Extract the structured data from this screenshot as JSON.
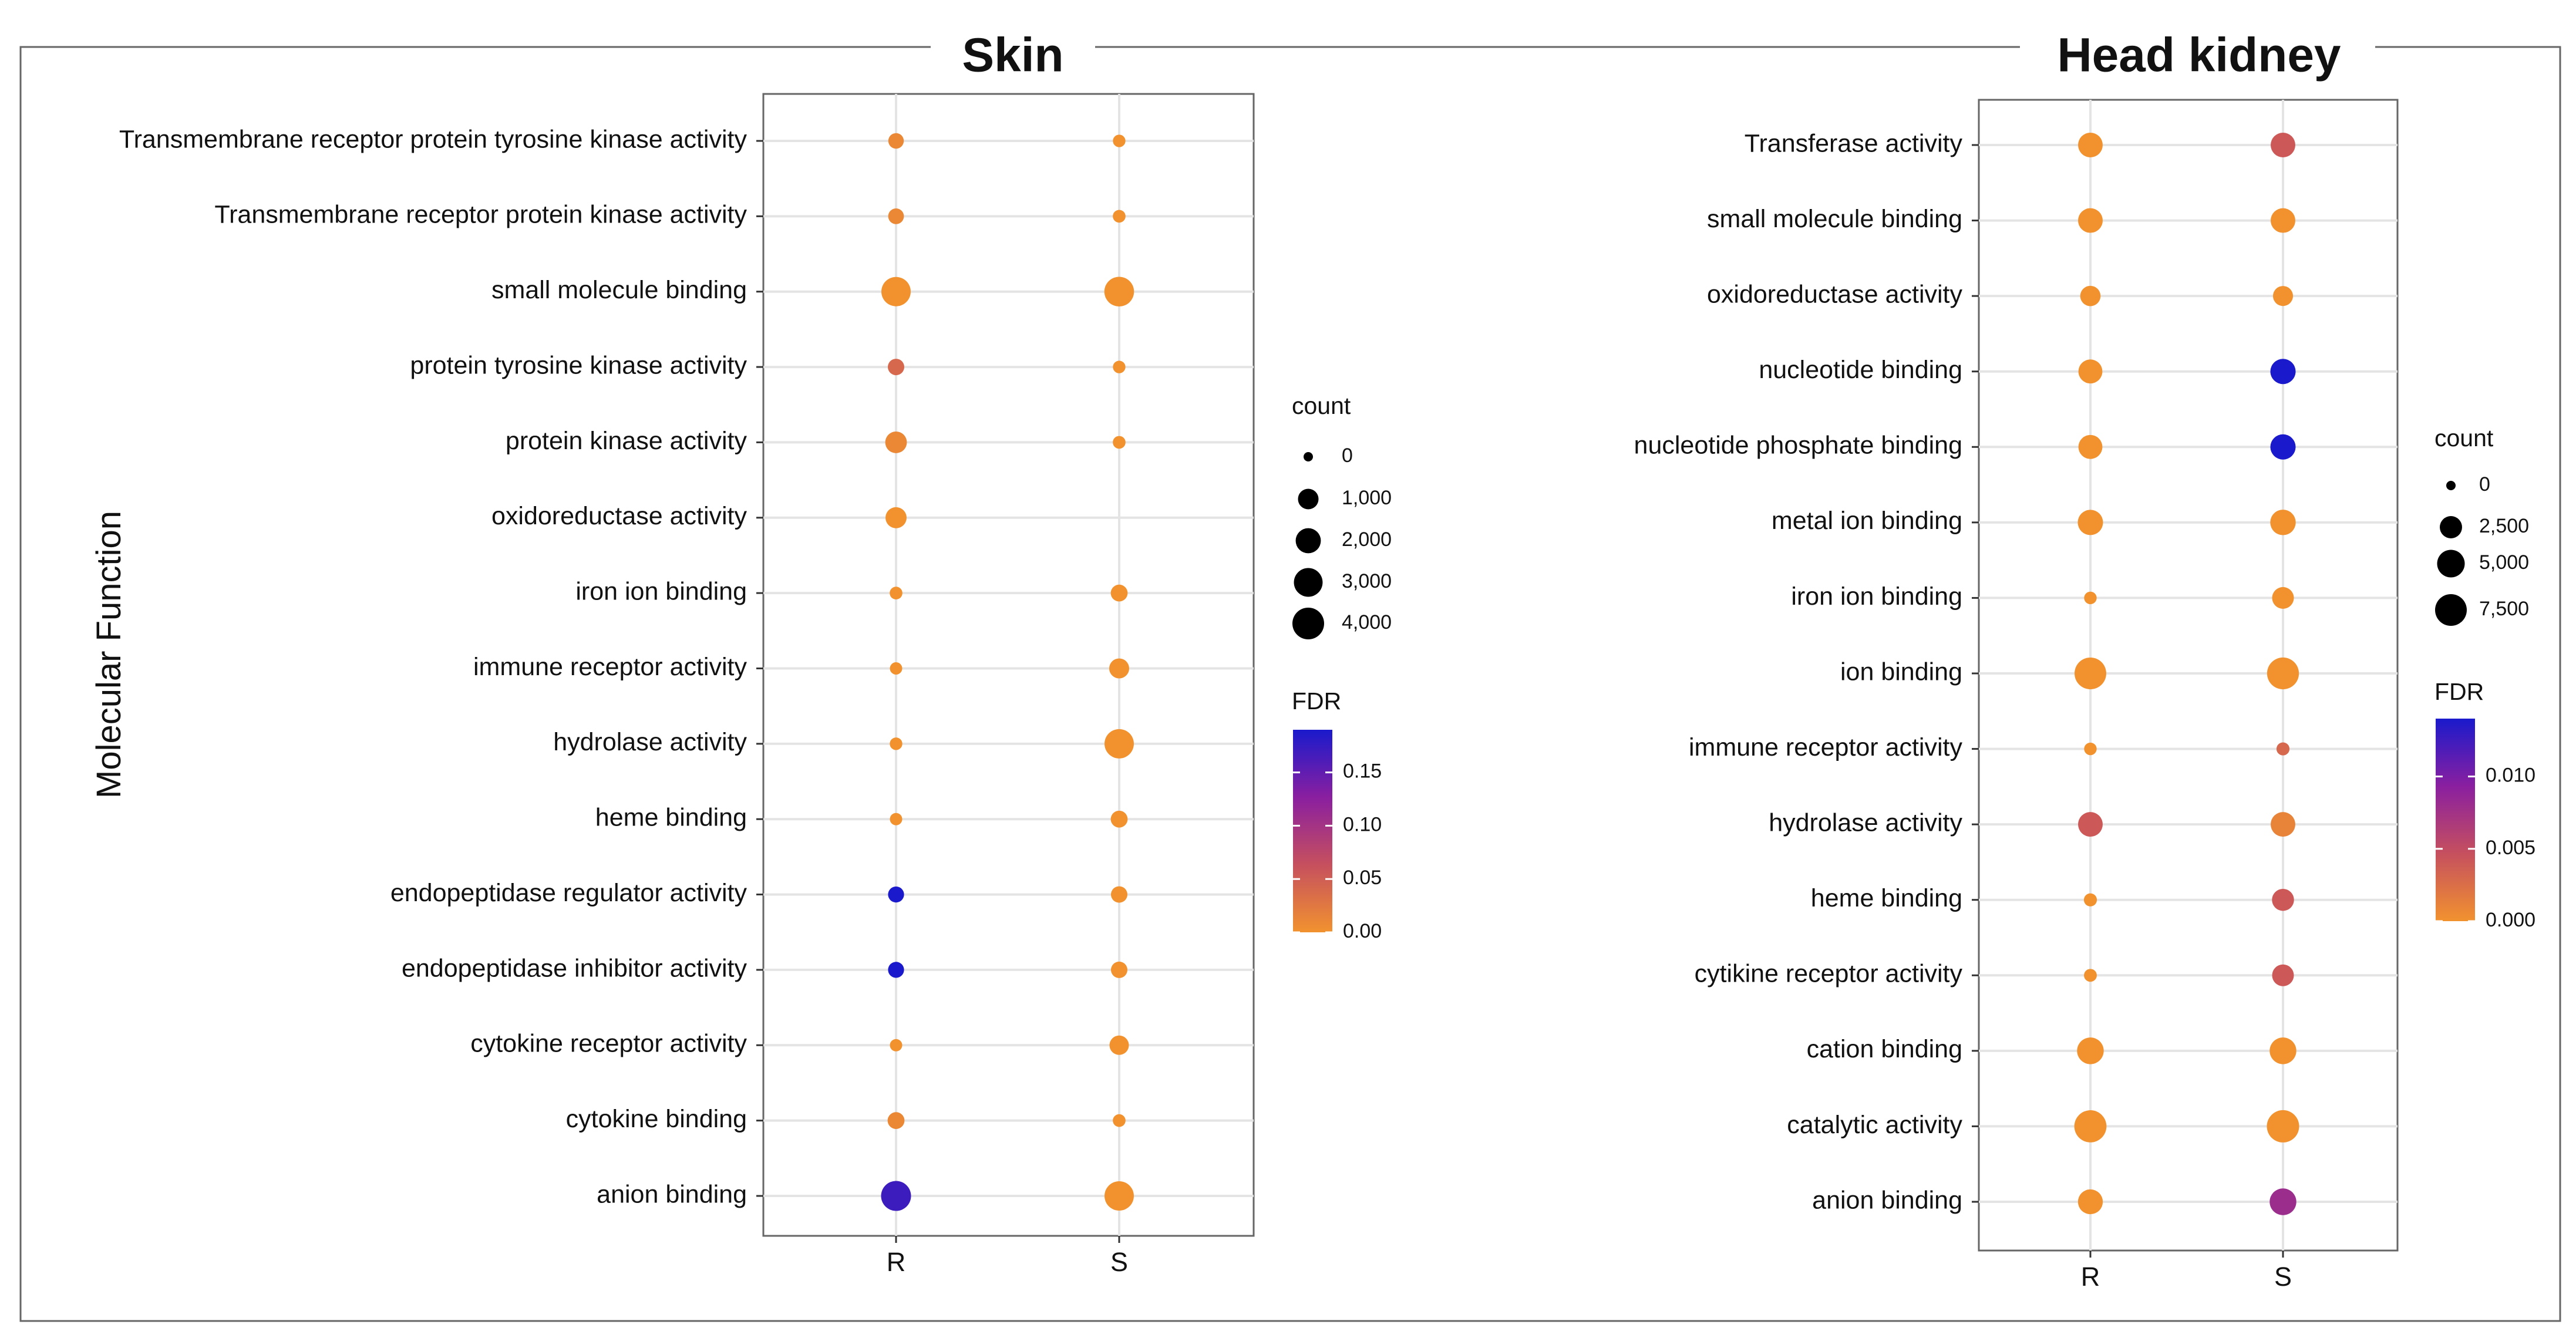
{
  "figure": {
    "y_axis_label": "Molecular Function"
  },
  "colors": {
    "fdr_low": "#F1922F",
    "fdr_mid": "#C6505E",
    "fdr_mid2": "#8A1FA0",
    "fdr_high": "#1A1ACC",
    "frame": "#666666",
    "grid": "#E4E4E4"
  },
  "chart_data": [
    {
      "type": "scatter",
      "title": "Skin",
      "xlabel": "",
      "ylabel": "Molecular Function",
      "x_categories": [
        "R",
        "S"
      ],
      "y_categories": [
        "Transmembrane receptor protein tyrosine kinase activity",
        "Transmembrane receptor protein kinase activity",
        "small molecule binding",
        "protein tyrosine kinase activity",
        "protein kinase activity",
        "oxidoreductase activity",
        "iron ion binding",
        "immune receptor activity",
        "hydrolase activity",
        "heme binding",
        "endopeptidase regulator activity",
        "endopeptidase inhibitor activity",
        "cytokine receptor activity",
        "cytokine binding",
        "anion binding"
      ],
      "size_legend": {
        "title": "count",
        "breaks": [
          0,
          1000,
          2000,
          3000,
          4000
        ],
        "labels": [
          "0",
          "1,000",
          "2,000",
          "3,000",
          "4,000"
        ],
        "max": 4000
      },
      "color_legend": {
        "title": "FDR",
        "range": [
          0,
          0.19
        ],
        "breaks": [
          0.0,
          0.05,
          0.1,
          0.15
        ],
        "labels": [
          "0.00",
          "0.05",
          "0.10",
          "0.15"
        ]
      },
      "points": [
        {
          "term": "Transmembrane receptor protein tyrosine kinase activity",
          "group": "R",
          "count": 300,
          "fdr": 0.01
        },
        {
          "term": "Transmembrane receptor protein tyrosine kinase activity",
          "group": "S",
          "count": 80,
          "fdr": 0.0
        },
        {
          "term": "Transmembrane receptor protein kinase activity",
          "group": "R",
          "count": 320,
          "fdr": 0.01
        },
        {
          "term": "Transmembrane receptor protein kinase activity",
          "group": "S",
          "count": 90,
          "fdr": 0.0
        },
        {
          "term": "small molecule binding",
          "group": "R",
          "count": 3200,
          "fdr": 0.0
        },
        {
          "term": "small molecule binding",
          "group": "S",
          "count": 3300,
          "fdr": 0.0
        },
        {
          "term": "protein tyrosine kinase activity",
          "group": "R",
          "count": 400,
          "fdr": 0.04
        },
        {
          "term": "protein tyrosine kinase activity",
          "group": "S",
          "count": 80,
          "fdr": 0.0
        },
        {
          "term": "protein kinase activity",
          "group": "R",
          "count": 1200,
          "fdr": 0.01
        },
        {
          "term": "protein kinase activity",
          "group": "S",
          "count": 90,
          "fdr": 0.0
        },
        {
          "term": "oxidoreductase activity",
          "group": "R",
          "count": 1100,
          "fdr": 0.0
        },
        {
          "term": "oxidoreductase activity",
          "group": "S",
          "count": 0,
          "fdr": null
        },
        {
          "term": "iron ion binding",
          "group": "R",
          "count": 90,
          "fdr": 0.0
        },
        {
          "term": "iron ion binding",
          "group": "S",
          "count": 450,
          "fdr": 0.0
        },
        {
          "term": "immune receptor activity",
          "group": "R",
          "count": 70,
          "fdr": 0.0
        },
        {
          "term": "immune receptor activity",
          "group": "S",
          "count": 900,
          "fdr": 0.0
        },
        {
          "term": "hydrolase activity",
          "group": "R",
          "count": 80,
          "fdr": 0.0
        },
        {
          "term": "hydrolase activity",
          "group": "S",
          "count": 3200,
          "fdr": 0.0
        },
        {
          "term": "heme binding",
          "group": "R",
          "count": 70,
          "fdr": 0.0
        },
        {
          "term": "heme binding",
          "group": "S",
          "count": 450,
          "fdr": 0.0
        },
        {
          "term": "endopeptidase regulator activity",
          "group": "R",
          "count": 350,
          "fdr": 0.19
        },
        {
          "term": "endopeptidase regulator activity",
          "group": "S",
          "count": 400,
          "fdr": 0.0
        },
        {
          "term": "endopeptidase inhibitor activity",
          "group": "R",
          "count": 350,
          "fdr": 0.19
        },
        {
          "term": "endopeptidase inhibitor activity",
          "group": "S",
          "count": 400,
          "fdr": 0.0
        },
        {
          "term": "cytokine receptor activity",
          "group": "R",
          "count": 70,
          "fdr": 0.0
        },
        {
          "term": "cytokine receptor activity",
          "group": "S",
          "count": 800,
          "fdr": 0.0
        },
        {
          "term": "cytokine binding",
          "group": "R",
          "count": 450,
          "fdr": 0.01
        },
        {
          "term": "cytokine binding",
          "group": "S",
          "count": 90,
          "fdr": 0.0
        },
        {
          "term": "anion binding",
          "group": "R",
          "count": 3400,
          "fdr": 0.17
        },
        {
          "term": "anion binding",
          "group": "S",
          "count": 3200,
          "fdr": 0.0
        }
      ]
    },
    {
      "type": "scatter",
      "title": "Head kidney",
      "xlabel": "",
      "ylabel": "",
      "x_categories": [
        "R",
        "S"
      ],
      "y_categories": [
        "Transferase activity",
        "small molecule binding",
        "oxidoreductase activity",
        "nucleotide binding",
        "nucleotide phosphate binding",
        "metal ion binding",
        "iron ion binding",
        "ion binding",
        "immune receptor activity",
        "hydrolase activity",
        "heme binding",
        "cytikine receptor activity",
        "cation binding",
        "catalytic activity",
        "anion binding"
      ],
      "size_legend": {
        "title": "count",
        "breaks": [
          0,
          2500,
          5000,
          7500
        ],
        "labels": [
          "0",
          "2,500",
          "5,000",
          "7,500"
        ],
        "max": 7500
      },
      "color_legend": {
        "title": "FDR",
        "range": [
          0,
          0.014
        ],
        "breaks": [
          0.0,
          0.005,
          0.01
        ],
        "labels": [
          "0.000",
          "0.005",
          "0.010"
        ]
      },
      "points": [
        {
          "term": "Transferase activity",
          "group": "R",
          "count": 3500,
          "fdr": 0.0
        },
        {
          "term": "Transferase activity",
          "group": "S",
          "count": 3500,
          "fdr": 0.004
        },
        {
          "term": "small molecule binding",
          "group": "R",
          "count": 3500,
          "fdr": 0.0
        },
        {
          "term": "small molecule binding",
          "group": "S",
          "count": 3500,
          "fdr": 0.0
        },
        {
          "term": "oxidoreductase activity",
          "group": "R",
          "count": 1800,
          "fdr": 0.0
        },
        {
          "term": "oxidoreductase activity",
          "group": "S",
          "count": 1700,
          "fdr": 0.0
        },
        {
          "term": "nucleotide binding",
          "group": "R",
          "count": 3200,
          "fdr": 0.0
        },
        {
          "term": "nucleotide binding",
          "group": "S",
          "count": 3800,
          "fdr": 0.014
        },
        {
          "term": "nucleotide phosphate binding",
          "group": "R",
          "count": 3200,
          "fdr": 0.0
        },
        {
          "term": "nucleotide phosphate binding",
          "group": "S",
          "count": 3800,
          "fdr": 0.014
        },
        {
          "term": "metal ion binding",
          "group": "R",
          "count": 3800,
          "fdr": 0.0
        },
        {
          "term": "metal ion binding",
          "group": "S",
          "count": 3900,
          "fdr": 0.0
        },
        {
          "term": "iron ion binding",
          "group": "R",
          "count": 150,
          "fdr": 0.0
        },
        {
          "term": "iron ion binding",
          "group": "S",
          "count": 2300,
          "fdr": 0.0
        },
        {
          "term": "ion binding",
          "group": "R",
          "count": 7500,
          "fdr": 0.0
        },
        {
          "term": "ion binding",
          "group": "S",
          "count": 7600,
          "fdr": 0.0
        },
        {
          "term": "immune receptor activity",
          "group": "R",
          "count": 150,
          "fdr": 0.0
        },
        {
          "term": "immune receptor activity",
          "group": "S",
          "count": 200,
          "fdr": 0.003
        },
        {
          "term": "hydrolase activity",
          "group": "R",
          "count": 3500,
          "fdr": 0.004
        },
        {
          "term": "hydrolase activity",
          "group": "S",
          "count": 3500,
          "fdr": 0.001
        },
        {
          "term": "heme binding",
          "group": "R",
          "count": 200,
          "fdr": 0.0
        },
        {
          "term": "heme binding",
          "group": "S",
          "count": 2400,
          "fdr": 0.004
        },
        {
          "term": "cytikine receptor activity",
          "group": "R",
          "count": 180,
          "fdr": 0.0
        },
        {
          "term": "cytikine receptor activity",
          "group": "S",
          "count": 2300,
          "fdr": 0.004
        },
        {
          "term": "cation binding",
          "group": "R",
          "count": 4500,
          "fdr": 0.0
        },
        {
          "term": "cation binding",
          "group": "S",
          "count": 4500,
          "fdr": 0.0
        },
        {
          "term": "catalytic activity",
          "group": "R",
          "count": 7800,
          "fdr": 0.0
        },
        {
          "term": "catalytic activity",
          "group": "S",
          "count": 7900,
          "fdr": 0.0
        },
        {
          "term": "anion binding",
          "group": "R",
          "count": 3600,
          "fdr": 0.0
        },
        {
          "term": "anion binding",
          "group": "S",
          "count": 4500,
          "fdr": 0.008
        }
      ]
    }
  ]
}
